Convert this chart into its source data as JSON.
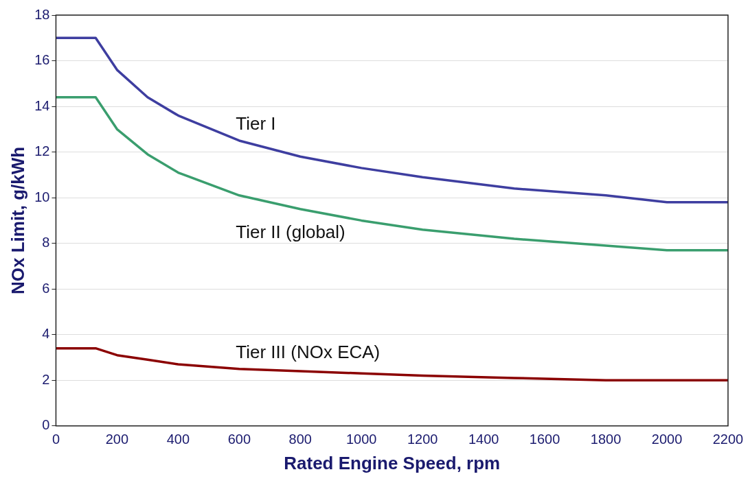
{
  "chart_data": {
    "type": "line",
    "xlabel": "Rated Engine Speed, rpm",
    "ylabel": "NOx Limit, g/kWh",
    "x": [
      0,
      130,
      200,
      300,
      400,
      600,
      800,
      1000,
      1200,
      1500,
      1800,
      2000,
      2200
    ],
    "series": [
      {
        "name": "Tier I",
        "color": "#3e3ea0",
        "values": [
          17,
          17,
          15.6,
          14.4,
          13.6,
          12.5,
          11.8,
          11.3,
          10.9,
          10.4,
          10.1,
          9.8,
          9.8
        ]
      },
      {
        "name": "Tier II (global)",
        "color": "#3a9e6e",
        "values": [
          14.4,
          14.4,
          13,
          11.9,
          11.1,
          10.1,
          9.5,
          9,
          8.6,
          8.2,
          7.9,
          7.7,
          7.7
        ]
      },
      {
        "name": "Tier III (NOx ECA)",
        "color": "#8b0000",
        "values": [
          3.4,
          3.4,
          3.1,
          2.9,
          2.7,
          2.5,
          2.4,
          2.3,
          2.2,
          2.1,
          2,
          2,
          2
        ]
      }
    ],
    "xlim": [
      0,
      2200
    ],
    "xticks": [
      0,
      200,
      400,
      600,
      800,
      1000,
      1200,
      1400,
      1600,
      1800,
      2000,
      2200
    ],
    "ylim": [
      0,
      18
    ],
    "yticks": [
      0,
      2,
      4,
      6,
      8,
      10,
      12,
      14,
      16,
      18
    ],
    "grid": "y",
    "legend": false,
    "marker": "none",
    "line_style": "solid"
  }
}
